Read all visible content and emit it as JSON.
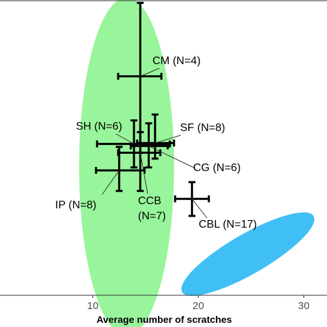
{
  "chart_data": {
    "type": "scatter",
    "xlabel": "Average number of scratches",
    "ylabel": "",
    "xlim": [
      1.2,
      32.2
    ],
    "ylim": [
      0,
      100
    ],
    "x_ticks": [
      10,
      20,
      30
    ],
    "colors": {
      "green_region": "#98f59b",
      "blue_region": "#40bff5",
      "marks": "#000000"
    },
    "regions": [
      {
        "color": "#98f59b",
        "cx": 13.2,
        "cy": 43.8,
        "rx": 4.5,
        "ry": 57.5,
        "angle": 0
      },
      {
        "color": "#40bff5",
        "cx": 24.7,
        "cy": 14.0,
        "rx": 7.2,
        "ry": 6.8,
        "angle": -30
      }
    ],
    "points": [
      {
        "label": "CM (N=4)",
        "x": 14.5,
        "y": 74.5,
        "xerr": [
          12.4,
          16.5
        ],
        "yerr": [
          48.5,
          99.5
        ]
      },
      {
        "label": "SH (N=6)",
        "x": 13.9,
        "y": 51.5,
        "xerr": [
          10.4,
          17.3
        ],
        "yerr": [
          43.5,
          59.5
        ]
      },
      {
        "label": "SF (N=8)",
        "x": 15.9,
        "y": 51.8,
        "xerr": [
          14.2,
          17.7
        ],
        "yerr": [
          46.5,
          61.5
        ]
      },
      {
        "label": "CG (N=6)",
        "x": 15.3,
        "y": 50.8,
        "xerr": [
          13.6,
          17.1
        ],
        "yerr": [
          43.5,
          58.5
        ]
      },
      {
        "label": "CCB (N=7)",
        "x": 14.5,
        "y": 48.5,
        "xerr": [
          12.4,
          16.4
        ],
        "yerr": [
          35.5,
          55.5
        ]
      },
      {
        "label": "IP (N=8)",
        "x": 12.5,
        "y": 42.5,
        "xerr": [
          10.3,
          14.9
        ],
        "yerr": [
          35.5,
          50.5
        ]
      },
      {
        "label": "CBL (N=17)",
        "x": 19.4,
        "y": 32.8,
        "xerr": [
          17.8,
          21.0
        ],
        "yerr": [
          27.0,
          38.5
        ]
      }
    ],
    "labels": [
      {
        "text": "CM (N=4)",
        "line_to": 0
      },
      {
        "text": "SH (N=6)",
        "line_to": 1
      },
      {
        "text": "SF (N=8)",
        "line_to": 2
      },
      {
        "text": "CG (N=6)",
        "line_to": 3
      },
      {
        "text": "CCB",
        "line_to": 4
      },
      {
        "text": "(N=7)",
        "line_to": null
      },
      {
        "text": "IP (N=8)",
        "line_to": 5
      },
      {
        "text": "CBL (N=17)",
        "line_to": 6
      }
    ]
  }
}
